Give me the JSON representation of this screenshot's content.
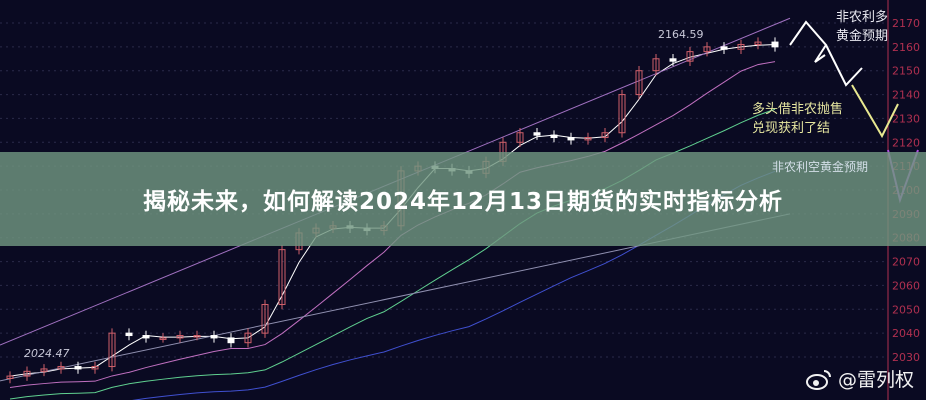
{
  "title": "揭秘未来，如何解读2024年12月13日期货的实时指标分析",
  "annotations": {
    "top_right": [
      "非农利多",
      "黄金预期"
    ],
    "middle": [
      "多头借非农抛售",
      "兑现获利了结"
    ],
    "faded": "非农利空黄金预期",
    "high_label": "2164.59",
    "low_label": "2024.47"
  },
  "watermark": {
    "icon": "weibo-icon",
    "text": "@雷列权"
  },
  "colors": {
    "background": "#0a0a22",
    "up": "#d0606a",
    "down": "#ffffff",
    "axis": "#b03050",
    "banner": "#70967f"
  },
  "chart_data": {
    "type": "candlestick",
    "yticks": [
      2170,
      2160,
      2150,
      2140,
      2130,
      2120,
      2110,
      2100,
      2090,
      2080,
      2070,
      2060,
      2050,
      2040,
      2030
    ],
    "ylim": [
      2030,
      2170
    ],
    "close": [
      2022,
      2024,
      2025,
      2026,
      2025,
      2026,
      2040,
      2039,
      2038,
      2038,
      2039,
      2039,
      2038,
      2036,
      2040,
      2052,
      2075,
      2082,
      2084,
      2085,
      2084,
      2083,
      2085,
      2108,
      2110,
      2109,
      2108,
      2107,
      2112,
      2120,
      2124,
      2123,
      2122,
      2121,
      2122,
      2124,
      2140,
      2150,
      2155,
      2154,
      2158,
      2160,
      2159,
      2161,
      2162,
      2160
    ],
    "grid": true
  }
}
